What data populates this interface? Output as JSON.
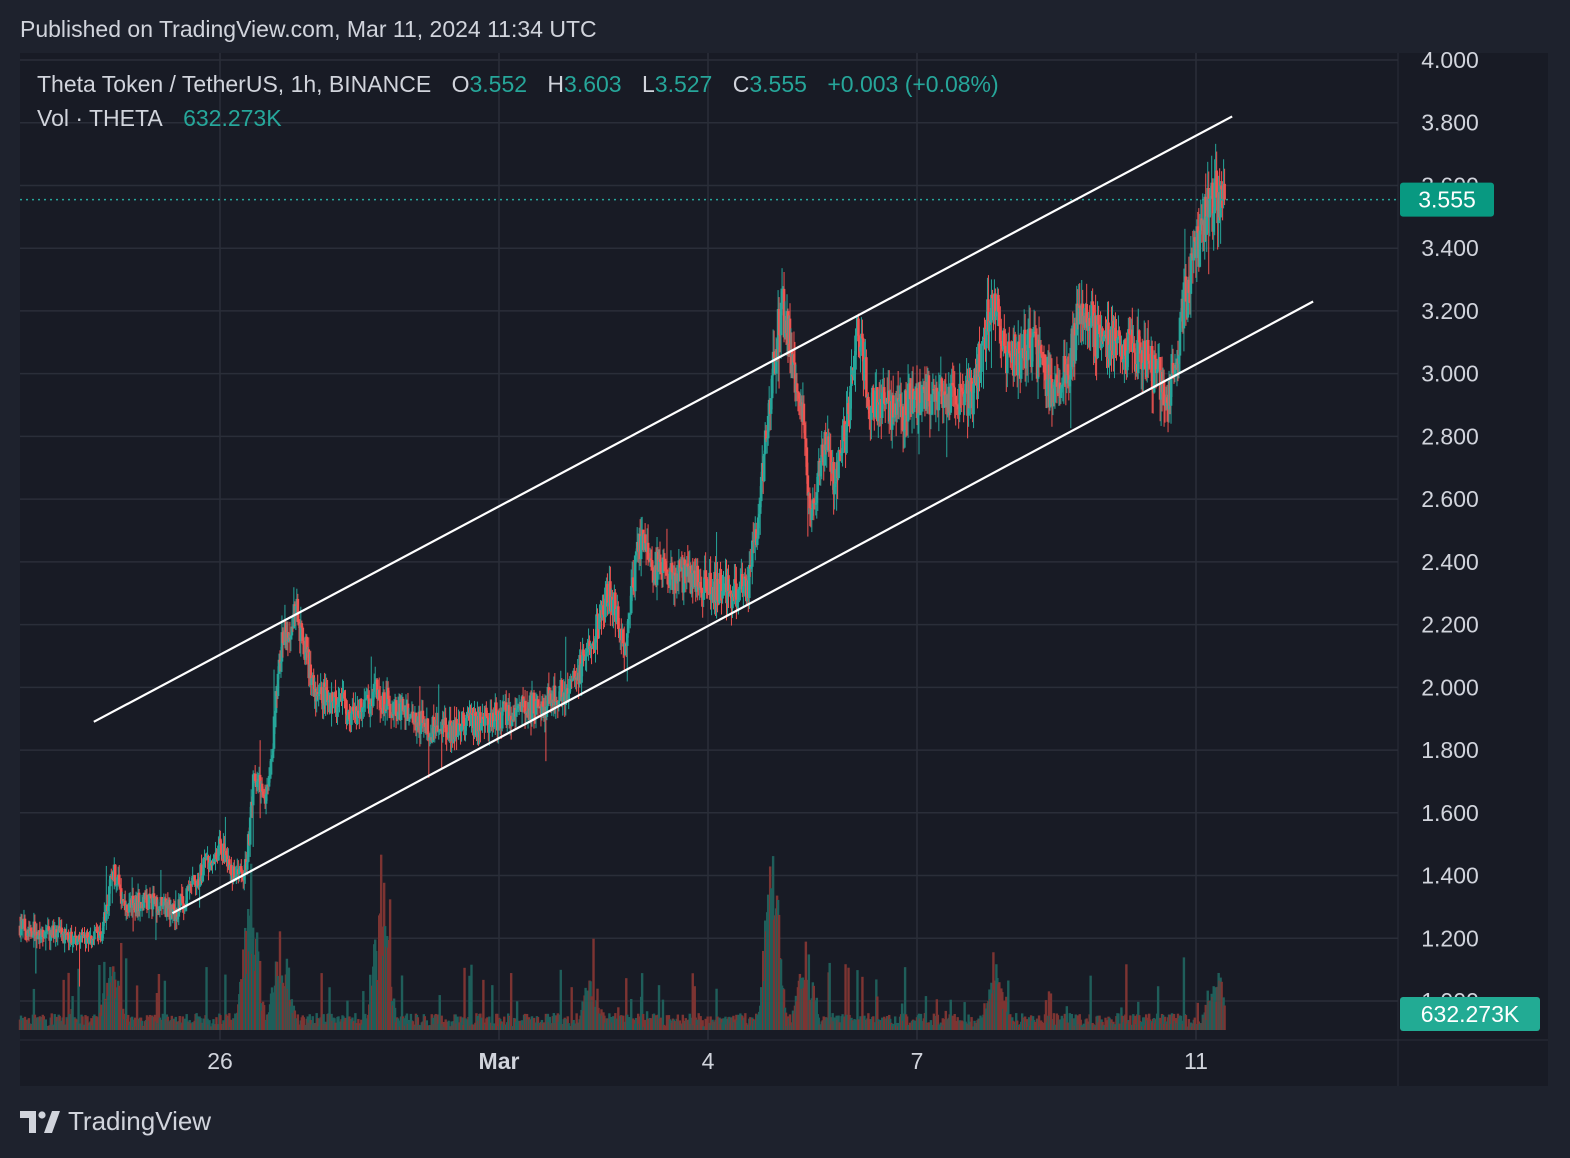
{
  "header": {
    "published": "Published on TradingView.com, Mar 11, 2024 11:34 UTC"
  },
  "legend": {
    "symbol": "Theta Token / TetherUS, 1h, BINANCE",
    "o_label": "O",
    "o_value": "3.552",
    "h_label": "H",
    "h_value": "3.603",
    "l_label": "L",
    "l_value": "3.527",
    "c_label": "C",
    "c_value": "3.555",
    "change": "+0.003 (+0.08%)",
    "vol_label": "Vol · THETA",
    "vol_value": "632.273K"
  },
  "price_tag": "3.555",
  "volume_tag": "632.273K",
  "footer": {
    "brand": "TradingView"
  },
  "colors": {
    "background": "#1e222d",
    "pane": "#181b25",
    "grid": "#2a2e39",
    "up": "#26a69a",
    "down": "#ef5350",
    "text": "#d1d4dc",
    "channel": "#ffffff"
  },
  "chart_data": {
    "type": "candlestick",
    "x_tick_labels": [
      "26",
      "Mar",
      "4",
      "7",
      "11"
    ],
    "y_tick_labels": [
      "1.000",
      "1.200",
      "1.400",
      "1.600",
      "1.800",
      "2.000",
      "2.200",
      "2.400",
      "2.600",
      "2.800",
      "3.000",
      "3.200",
      "3.400",
      "3.600",
      "3.800",
      "4.000"
    ],
    "ylim": [
      1.0,
      4.0
    ],
    "last_price": 3.555,
    "price_path": [
      [
        0.0,
        1.24
      ],
      [
        2.2,
        1.2
      ],
      [
        3.4,
        1.2
      ],
      [
        3.9,
        1.42
      ],
      [
        4.4,
        1.31
      ],
      [
        5.6,
        1.32
      ],
      [
        6.5,
        1.28
      ],
      [
        7.7,
        1.42
      ],
      [
        8.4,
        1.49
      ],
      [
        9.0,
        1.4
      ],
      [
        9.5,
        1.42
      ],
      [
        9.8,
        1.7
      ],
      [
        10.4,
        1.66
      ],
      [
        11.0,
        2.16
      ],
      [
        11.6,
        2.24
      ],
      [
        12.4,
        1.98
      ],
      [
        14.0,
        1.92
      ],
      [
        15.0,
        1.98
      ],
      [
        16.0,
        1.92
      ],
      [
        17.5,
        1.86
      ],
      [
        19.0,
        1.88
      ],
      [
        20.5,
        1.92
      ],
      [
        22.0,
        1.95
      ],
      [
        23.0,
        2.0
      ],
      [
        24.0,
        2.12
      ],
      [
        24.7,
        2.32
      ],
      [
        25.4,
        2.12
      ],
      [
        26.0,
        2.46
      ],
      [
        26.6,
        2.38
      ],
      [
        27.5,
        2.36
      ],
      [
        29.0,
        2.32
      ],
      [
        30.0,
        2.3
      ],
      [
        30.6,
        2.32
      ],
      [
        31.1,
        2.62
      ],
      [
        31.6,
        3.02
      ],
      [
        32.0,
        3.22
      ],
      [
        32.4,
        3.06
      ],
      [
        32.9,
        2.88
      ],
      [
        33.2,
        2.5
      ],
      [
        33.8,
        2.8
      ],
      [
        34.2,
        2.66
      ],
      [
        34.8,
        2.86
      ],
      [
        35.2,
        3.16
      ],
      [
        35.6,
        2.92
      ],
      [
        37.0,
        2.88
      ],
      [
        38.0,
        2.94
      ],
      [
        39.0,
        2.9
      ],
      [
        40.0,
        2.94
      ],
      [
        40.8,
        3.26
      ],
      [
        41.5,
        3.04
      ],
      [
        42.5,
        3.08
      ],
      [
        43.2,
        2.96
      ],
      [
        44.0,
        3.02
      ],
      [
        44.6,
        3.22
      ],
      [
        45.2,
        3.12
      ],
      [
        46.0,
        3.1
      ],
      [
        47.2,
        3.06
      ],
      [
        48.3,
        2.92
      ],
      [
        48.8,
        3.2
      ],
      [
        49.2,
        3.32
      ],
      [
        49.6,
        3.46
      ],
      [
        50.2,
        3.56
      ],
      [
        50.6,
        3.555
      ]
    ],
    "volume_peaks": [
      [
        3.9,
        0.22
      ],
      [
        9.7,
        0.55
      ],
      [
        11.0,
        0.35
      ],
      [
        15.2,
        0.58
      ],
      [
        24.0,
        0.16
      ],
      [
        31.6,
        0.72
      ],
      [
        33.0,
        0.28
      ],
      [
        41.0,
        0.2
      ],
      [
        50.3,
        0.2
      ]
    ],
    "channel_lines": [
      {
        "name": "upper",
        "from": [
          3.1,
          1.89
        ],
        "to": [
          50.9,
          3.82
        ]
      },
      {
        "name": "lower",
        "from": [
          6.4,
          1.28
        ],
        "to": [
          54.3,
          3.23
        ]
      }
    ],
    "channel_x_scale": {
      "x0": 0.0,
      "x_last": 50.6
    }
  }
}
